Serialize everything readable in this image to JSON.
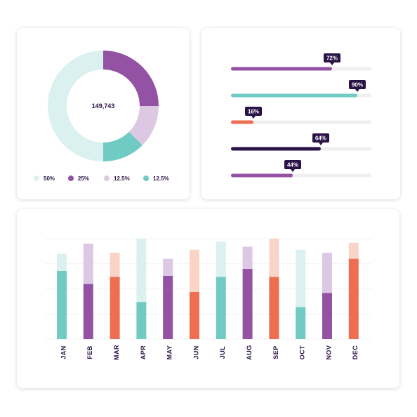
{
  "colors": {
    "teal": "#6fcbc4",
    "teal_light": "#dbf1ef",
    "purple": "#9452a5",
    "purple_light": "#dcc8e3",
    "orange": "#ef6e51",
    "orange_light": "#f9d4c7",
    "navy": "#2a1346",
    "track": "#efefef"
  },
  "chart_data": [
    {
      "type": "pie",
      "center_label": "149,743",
      "slices": [
        {
          "label": "50%",
          "value": 50,
          "color": "#dbf1ef",
          "legend_color": "#dbf1ef"
        },
        {
          "label": "25%",
          "value": 25,
          "color": "#9452a5",
          "legend_color": "#9452a5"
        },
        {
          "label": "12.5%",
          "value": 12.5,
          "color": "#dcc8e3",
          "legend_color": "#dcc8e3"
        },
        {
          "label": "12.5%",
          "value": 12.5,
          "color": "#6fcbc4",
          "legend_color": "#6fcbc4"
        }
      ]
    },
    {
      "type": "bar",
      "orientation": "horizontal",
      "xlim": [
        0,
        100
      ],
      "bars": [
        {
          "label": "72%",
          "value": 72,
          "color": "#9452a5"
        },
        {
          "label": "90%",
          "value": 90,
          "color": "#6fcbc4"
        },
        {
          "label": "16%",
          "value": 16,
          "color": "#ef6e51"
        },
        {
          "label": "64%",
          "value": 64,
          "color": "#2a1346"
        },
        {
          "label": "44%",
          "value": 44,
          "color": "#9452a5"
        }
      ]
    },
    {
      "type": "bar",
      "stacked": true,
      "ylim": [
        0,
        100
      ],
      "grid": true,
      "categories": [
        "JAN",
        "FEB",
        "MAR",
        "APR",
        "MAY",
        "JUN",
        "JUL",
        "AUG",
        "SEP",
        "OCT",
        "NOV",
        "DEC"
      ],
      "series": [
        {
          "values": [
            68,
            55,
            62,
            37,
            63,
            47,
            62,
            70,
            62,
            32,
            46,
            80
          ]
        },
        {
          "values": [
            17,
            40,
            24,
            63,
            17,
            42,
            35,
            22,
            38,
            57,
            40,
            16
          ]
        }
      ],
      "colors": [
        [
          "#6fcbc4",
          "#dbf1ef"
        ],
        [
          "#9452a5",
          "#dcc8e3"
        ],
        [
          "#ef6e51",
          "#f9d4c7"
        ],
        [
          "#6fcbc4",
          "#dbf1ef"
        ],
        [
          "#9452a5",
          "#dcc8e3"
        ],
        [
          "#ef6e51",
          "#f9d4c7"
        ],
        [
          "#6fcbc4",
          "#dbf1ef"
        ],
        [
          "#9452a5",
          "#dcc8e3"
        ],
        [
          "#ef6e51",
          "#f9d4c7"
        ],
        [
          "#6fcbc4",
          "#dbf1ef"
        ],
        [
          "#9452a5",
          "#dcc8e3"
        ],
        [
          "#ef6e51",
          "#f9d4c7"
        ]
      ]
    }
  ]
}
